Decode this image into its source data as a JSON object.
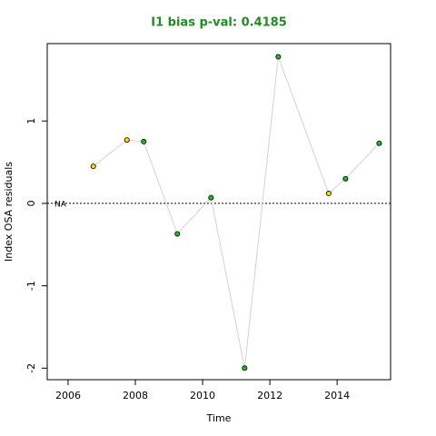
{
  "chart_data": {
    "type": "line",
    "title": "I1 bias p-val: 0.4185",
    "x_label": "Time",
    "y_label": "Index OSA residuals",
    "annotation": "NA",
    "x": [
      2006.75,
      2007.75,
      2008.25,
      2009.25,
      2010.25,
      2011.25,
      2012.25,
      2013.75,
      2014.25,
      2015.25
    ],
    "series": [
      {
        "values": [
          0.45,
          0.77,
          0.75,
          -0.37,
          0.07,
          -2.0,
          1.78,
          0.12,
          0.3,
          0.73
        ],
        "color": "#d3d3d3",
        "point_colors": [
          "#ffd700",
          "#ffd700",
          "#22bb22",
          "#22bb22",
          "#22bb22",
          "#22bb22",
          "#22bb22",
          "#ffd700",
          "#22bb22",
          "#22bb22"
        ]
      }
    ],
    "hline": 0,
    "xlim": [
      2005.38,
      2015.59
    ],
    "ylim": [
      -2.14,
      1.94
    ],
    "xticks": [
      2006,
      2008,
      2010,
      2012,
      2014
    ],
    "yticks": [
      1,
      0,
      -1,
      -2
    ]
  }
}
